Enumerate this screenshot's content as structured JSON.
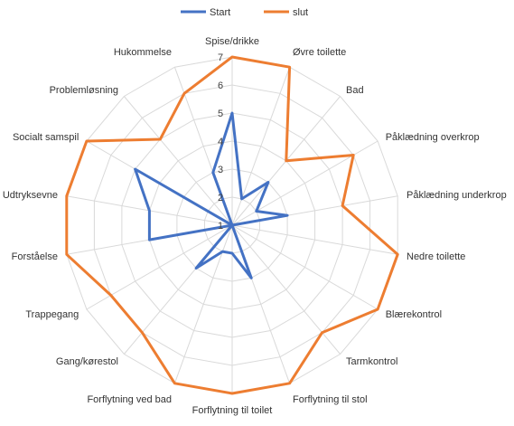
{
  "chart_data": {
    "type": "radar",
    "title": "",
    "categories": [
      "Spise/drikke",
      "Øvre toilette",
      "Bad",
      "Påklædning overkrop",
      "Påklædning underkrop",
      "Nedre toilette",
      "Blærekontrol",
      "Tarmkontrol",
      "Forflytning til stol",
      "Forflytning til toilet",
      "Forflytning ved bad",
      "Gang/kørestol",
      "Trappegang",
      "Forståelse",
      "Udtryksevne",
      "Socialt samspil",
      "Problemløsning",
      "Hukommelse"
    ],
    "series": [
      {
        "name": "Start",
        "color": "#4472C4",
        "values": [
          5,
          2,
          3,
          2,
          3,
          1,
          1,
          1,
          3,
          2,
          2,
          3,
          1,
          4,
          4,
          5,
          1,
          3
        ]
      },
      {
        "name": "slut",
        "color": "#ED7D31",
        "values": [
          7,
          7,
          4,
          6,
          5,
          7,
          7,
          6,
          7,
          7,
          7,
          6,
          6,
          7,
          7,
          7,
          5,
          6
        ]
      }
    ],
    "rlim": [
      1,
      7
    ],
    "ticks": [
      1,
      2,
      3,
      4,
      5,
      6,
      7
    ],
    "grid": true,
    "legend_position": "top"
  }
}
